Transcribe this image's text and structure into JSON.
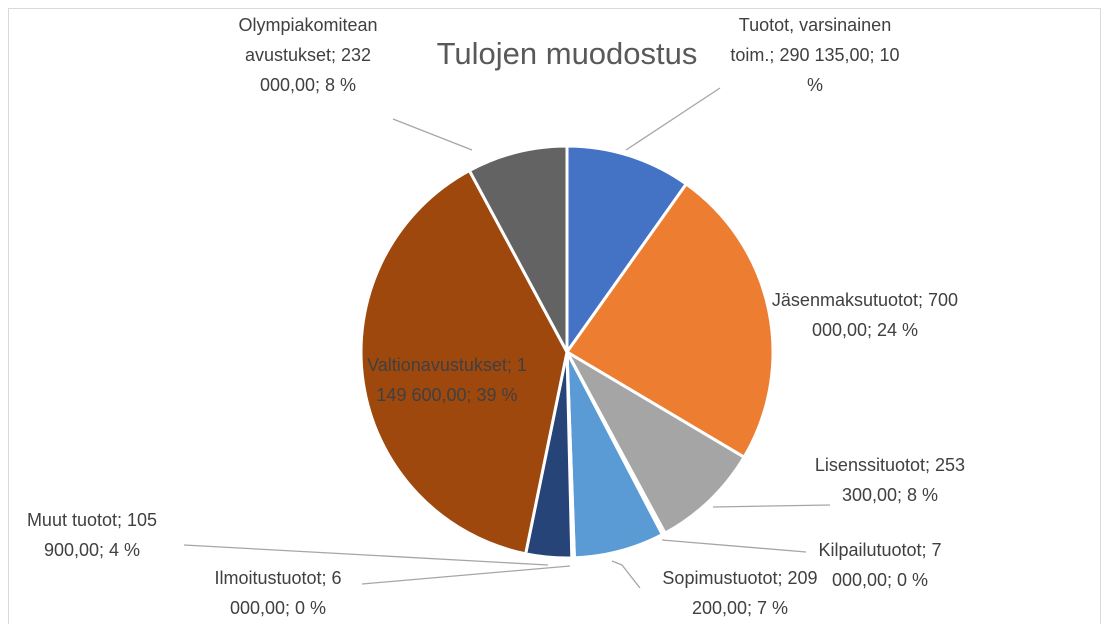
{
  "chart_data": {
    "type": "pie",
    "title": "Tulojen muodostus",
    "label_separator": "; ",
    "categories": [
      "Tuotot, varsinainen toim.",
      "Jäsenmaksutuotot",
      "Lisenssituotot",
      "Kilpailutuotot",
      "Sopimustuotot",
      "Ilmoitustuotot",
      "Muut tuotot",
      "Valtionavustukset",
      "Olympiakomitean avustukset"
    ],
    "values": [
      290135,
      700000,
      253300,
      7000,
      209200,
      6000,
      105900,
      1149600,
      232000
    ],
    "value_labels": [
      "290 135,00",
      "700 000,00",
      "253 300,00",
      "7 000,00",
      "209 200,00",
      "6 000,00",
      "105 900,00",
      "1 149 600,00",
      "232 000,00"
    ],
    "percents": [
      10,
      24,
      8,
      0,
      7,
      0,
      4,
      39,
      8
    ],
    "percent_labels": [
      "10 %",
      "24 %",
      "8 %",
      "0 %",
      "7 %",
      "0 %",
      "4 %",
      "39 %",
      "8 %"
    ],
    "colors": [
      "#4472c4",
      "#ed7d31",
      "#a5a5a5",
      "#ffc000",
      "#5b9bd5",
      "#70ad47",
      "#264478",
      "#9e480e",
      "#636363"
    ]
  }
}
